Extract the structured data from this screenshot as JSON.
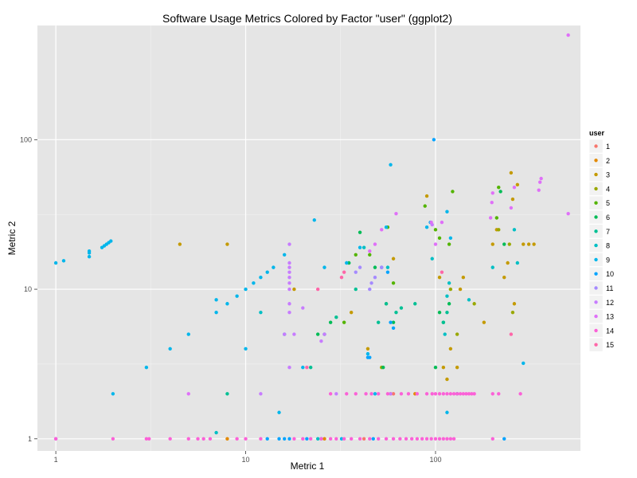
{
  "chart_data": {
    "type": "scatter",
    "title": "Software Usage Metrics Colored by Factor \"user\" (ggplot2)",
    "xlabel": "Metric 1",
    "ylabel": "Metric 2",
    "x_scale": "log",
    "y_scale": "log",
    "xlim": [
      0.8,
      580
    ],
    "ylim": [
      0.83,
      580
    ],
    "x_ticks": [
      1,
      10,
      100
    ],
    "x_tick_labels": [
      "1",
      "10",
      "100"
    ],
    "y_ticks": [
      1,
      10,
      100
    ],
    "y_tick_labels": [
      "1",
      "10",
      "100"
    ],
    "grid": true,
    "legend": {
      "title": "user",
      "position": "right"
    },
    "colors": {
      "1": "#F8766D",
      "2": "#E38900",
      "3": "#C49A00",
      "4": "#99A800",
      "5": "#53B400",
      "6": "#00BC56",
      "7": "#00C094",
      "8": "#00BFC4",
      "9": "#00B6EB",
      "10": "#06A4FF",
      "11": "#A58AFF",
      "12": "#C77CFF",
      "13": "#DF70F8",
      "14": "#FB61D7",
      "15": "#FF66A8"
    },
    "series": [
      {
        "name": "1",
        "points": [
          [
            42,
            1
          ],
          [
            60,
            2
          ]
        ]
      },
      {
        "name": "2",
        "points": [
          [
            8,
            1
          ],
          [
            26,
            1
          ],
          [
            58,
            2
          ],
          [
            78,
            2
          ]
        ]
      },
      {
        "name": "3",
        "points": [
          [
            4.5,
            20
          ],
          [
            8,
            20
          ],
          [
            18,
            10
          ],
          [
            36,
            7
          ],
          [
            44,
            4
          ],
          [
            60,
            16
          ],
          [
            55,
            8
          ],
          [
            90,
            42
          ],
          [
            105,
            12
          ],
          [
            110,
            3
          ],
          [
            115,
            2.5
          ],
          [
            120,
            4
          ],
          [
            130,
            3
          ],
          [
            135,
            10
          ],
          [
            140,
            12
          ],
          [
            180,
            6
          ],
          [
            200,
            20
          ],
          [
            210,
            25
          ],
          [
            230,
            12
          ],
          [
            240,
            15
          ],
          [
            250,
            60
          ],
          [
            255,
            40
          ],
          [
            260,
            8
          ],
          [
            270,
            50
          ],
          [
            290,
            20
          ],
          [
            310,
            20
          ],
          [
            330,
            20
          ]
        ]
      },
      {
        "name": "4",
        "points": [
          [
            52,
            3
          ],
          [
            120,
            10
          ],
          [
            130,
            5
          ],
          [
            160,
            8
          ],
          [
            215,
            25
          ],
          [
            245,
            20
          ],
          [
            255,
            7
          ]
        ]
      },
      {
        "name": "5",
        "points": [
          [
            33,
            6
          ],
          [
            38,
            17
          ],
          [
            45,
            17
          ],
          [
            56,
            26
          ],
          [
            60,
            11
          ],
          [
            88,
            36
          ],
          [
            100,
            25
          ],
          [
            105,
            22
          ],
          [
            118,
            20
          ],
          [
            123,
            45
          ],
          [
            210,
            30
          ],
          [
            215,
            48
          ]
        ]
      },
      {
        "name": "6",
        "points": [
          [
            24,
            5
          ],
          [
            28,
            6
          ],
          [
            35,
            15
          ],
          [
            40,
            24
          ],
          [
            48,
            14
          ],
          [
            53,
            3
          ],
          [
            60,
            6
          ],
          [
            100,
            3
          ],
          [
            105,
            7
          ],
          [
            110,
            6
          ],
          [
            118,
            8
          ],
          [
            220,
            45
          ],
          [
            230,
            20
          ]
        ]
      },
      {
        "name": "7",
        "points": [
          [
            8,
            2
          ],
          [
            22,
            3
          ],
          [
            26,
            5
          ],
          [
            30,
            6.5
          ],
          [
            38,
            10
          ],
          [
            50,
            6
          ],
          [
            55,
            8
          ],
          [
            62,
            7
          ],
          [
            66,
            7.5
          ],
          [
            78,
            8
          ],
          [
            110,
            6
          ],
          [
            115,
            7
          ]
        ]
      },
      {
        "name": "8",
        "points": [
          [
            7,
            1.1
          ],
          [
            12,
            7
          ],
          [
            16,
            5
          ],
          [
            24,
            1
          ],
          [
            42,
            19
          ],
          [
            56,
            14
          ],
          [
            96,
            16
          ],
          [
            112,
            5
          ],
          [
            115,
            9
          ],
          [
            118,
            11
          ],
          [
            130,
            2
          ],
          [
            150,
            8.5
          ],
          [
            200,
            14
          ],
          [
            260,
            25
          ],
          [
            270,
            15
          ]
        ]
      },
      {
        "name": "9",
        "points": [
          [
            1,
            15
          ],
          [
            1.1,
            15.5
          ],
          [
            1.5,
            16.5
          ],
          [
            1.5,
            17.5
          ],
          [
            1.5,
            18
          ],
          [
            1.75,
            19
          ],
          [
            1.8,
            19.5
          ],
          [
            1.85,
            20
          ],
          [
            1.9,
            20.5
          ],
          [
            1.95,
            21
          ],
          [
            2,
            2
          ],
          [
            3,
            3
          ],
          [
            4,
            4
          ],
          [
            5,
            5
          ],
          [
            7,
            7
          ],
          [
            7,
            8.5
          ],
          [
            8,
            8
          ],
          [
            9,
            9
          ],
          [
            10,
            10
          ],
          [
            10,
            4
          ],
          [
            11,
            11
          ],
          [
            12,
            12
          ],
          [
            13,
            13
          ],
          [
            14,
            14
          ],
          [
            15,
            1.5
          ],
          [
            16,
            17
          ],
          [
            20,
            3
          ],
          [
            23,
            29
          ],
          [
            26,
            14
          ],
          [
            32,
            1
          ],
          [
            34,
            15
          ],
          [
            40,
            19
          ],
          [
            44,
            3.7
          ],
          [
            48,
            2
          ],
          [
            55,
            26
          ],
          [
            58,
            68
          ],
          [
            90,
            26
          ],
          [
            94,
            28
          ],
          [
            115,
            33
          ],
          [
            120,
            22
          ],
          [
            115,
            1.5
          ],
          [
            290,
            3.2
          ]
        ]
      },
      {
        "name": "10",
        "points": [
          [
            13,
            1
          ],
          [
            15,
            1
          ],
          [
            16,
            1
          ],
          [
            17,
            1
          ],
          [
            21,
            1
          ],
          [
            25,
            1
          ],
          [
            44,
            3.5
          ],
          [
            45,
            3.5
          ],
          [
            47,
            1
          ],
          [
            52,
            14
          ],
          [
            56,
            13
          ],
          [
            58,
            6
          ],
          [
            60,
            5.5
          ],
          [
            98,
            100
          ],
          [
            230,
            1
          ]
        ]
      },
      {
        "name": "11",
        "points": [
          [
            1,
            1
          ],
          [
            38,
            13
          ],
          [
            40,
            14
          ],
          [
            45,
            10
          ],
          [
            46,
            11
          ],
          [
            48,
            12
          ],
          [
            52,
            14
          ]
        ]
      },
      {
        "name": "12",
        "points": [
          [
            12,
            2
          ],
          [
            16,
            5
          ],
          [
            17,
            10
          ],
          [
            17,
            11
          ],
          [
            17,
            12
          ],
          [
            17,
            13
          ],
          [
            17,
            14
          ],
          [
            17,
            15
          ],
          [
            17,
            20
          ],
          [
            17,
            3
          ],
          [
            17,
            7
          ],
          [
            17,
            8
          ],
          [
            18,
            5
          ],
          [
            20,
            7.5
          ],
          [
            25,
            4.5
          ],
          [
            26,
            5
          ],
          [
            30,
            2
          ],
          [
            58,
            2
          ],
          [
            96,
            27
          ]
        ]
      },
      {
        "name": "13",
        "points": [
          [
            5,
            2
          ],
          [
            45,
            18
          ],
          [
            48,
            20
          ],
          [
            52,
            25
          ],
          [
            62,
            32
          ],
          [
            95,
            28
          ],
          [
            100,
            20
          ],
          [
            108,
            28
          ],
          [
            195,
            30
          ],
          [
            198,
            38
          ],
          [
            200,
            44
          ],
          [
            250,
            35
          ],
          [
            260,
            48
          ],
          [
            350,
            46
          ],
          [
            355,
            52
          ],
          [
            360,
            55
          ],
          [
            500,
            32
          ],
          [
            500,
            500
          ]
        ]
      },
      {
        "name": "14",
        "points": [
          [
            1,
            1
          ],
          [
            2,
            1
          ],
          [
            3,
            1
          ],
          [
            3.1,
            1
          ],
          [
            4,
            1
          ],
          [
            5,
            1
          ],
          [
            5.6,
            1
          ],
          [
            6,
            1
          ],
          [
            6.5,
            1
          ],
          [
            9,
            1
          ],
          [
            10,
            1
          ],
          [
            12,
            1
          ],
          [
            18,
            1
          ],
          [
            20,
            1
          ],
          [
            22,
            1
          ],
          [
            25,
            1
          ],
          [
            28,
            1
          ],
          [
            30,
            1
          ],
          [
            33,
            1
          ],
          [
            36,
            1
          ],
          [
            40,
            1
          ],
          [
            45,
            1
          ],
          [
            50,
            1
          ],
          [
            55,
            1
          ],
          [
            60,
            1
          ],
          [
            65,
            1
          ],
          [
            70,
            1
          ],
          [
            75,
            1
          ],
          [
            80,
            1
          ],
          [
            85,
            1
          ],
          [
            90,
            1
          ],
          [
            95,
            1
          ],
          [
            100,
            1
          ],
          [
            105,
            1
          ],
          [
            110,
            1
          ],
          [
            115,
            1
          ],
          [
            120,
            1
          ],
          [
            125,
            1
          ],
          [
            200,
            1
          ],
          [
            28,
            2
          ],
          [
            34,
            2
          ],
          [
            38,
            2
          ],
          [
            43,
            2
          ],
          [
            46,
            2
          ],
          [
            50,
            2
          ],
          [
            56,
            2
          ],
          [
            66,
            2
          ],
          [
            72,
            2
          ],
          [
            80,
            2
          ],
          [
            90,
            2
          ],
          [
            96,
            2
          ],
          [
            100,
            2
          ],
          [
            105,
            2
          ],
          [
            110,
            2
          ],
          [
            115,
            2
          ],
          [
            120,
            2
          ],
          [
            125,
            2
          ],
          [
            130,
            2
          ],
          [
            135,
            2
          ],
          [
            140,
            2
          ],
          [
            145,
            2
          ],
          [
            150,
            2
          ],
          [
            155,
            2
          ],
          [
            160,
            2
          ],
          [
            200,
            2
          ],
          [
            215,
            2
          ],
          [
            280,
            2
          ]
        ]
      },
      {
        "name": "15",
        "points": [
          [
            21,
            3
          ],
          [
            24,
            10
          ],
          [
            32,
            12
          ],
          [
            33,
            13
          ],
          [
            108,
            13
          ],
          [
            250,
            5
          ]
        ]
      }
    ]
  }
}
